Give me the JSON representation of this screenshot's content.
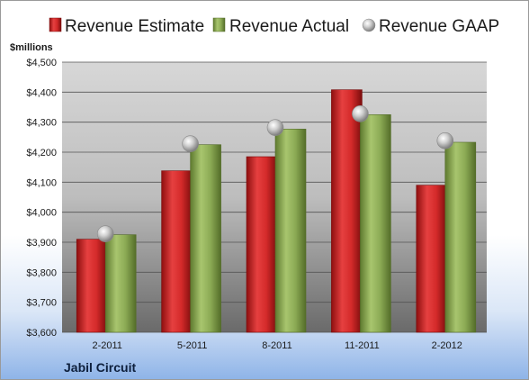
{
  "chart_data": {
    "type": "bar",
    "ylabel": "$millions",
    "company": "Jabil Circuit",
    "categories": [
      "2-2011",
      "5-2011",
      "8-2011",
      "11-2011",
      "2-2012"
    ],
    "series": [
      {
        "name": "Revenue Estimate",
        "type": "bar",
        "color": "#d42a2a",
        "values": [
          3910,
          4138,
          4185,
          4408,
          4090
        ]
      },
      {
        "name": "Revenue Actual",
        "type": "bar",
        "color": "#8cab55",
        "values": [
          3925,
          4225,
          4277,
          4325,
          4233
        ]
      },
      {
        "name": "Revenue GAAP",
        "type": "scatter",
        "color": "#b8b8b8",
        "values": [
          3928,
          4228,
          4282,
          4328,
          4238
        ]
      }
    ],
    "yticks": [
      "$3,600",
      "$3,700",
      "$3,800",
      "$3,900",
      "$4,000",
      "$4,100",
      "$4,200",
      "$4,300",
      "$4,400",
      "$4,500"
    ],
    "ylim": [
      3600,
      4500
    ],
    "grid": true,
    "legend_position": "top"
  }
}
